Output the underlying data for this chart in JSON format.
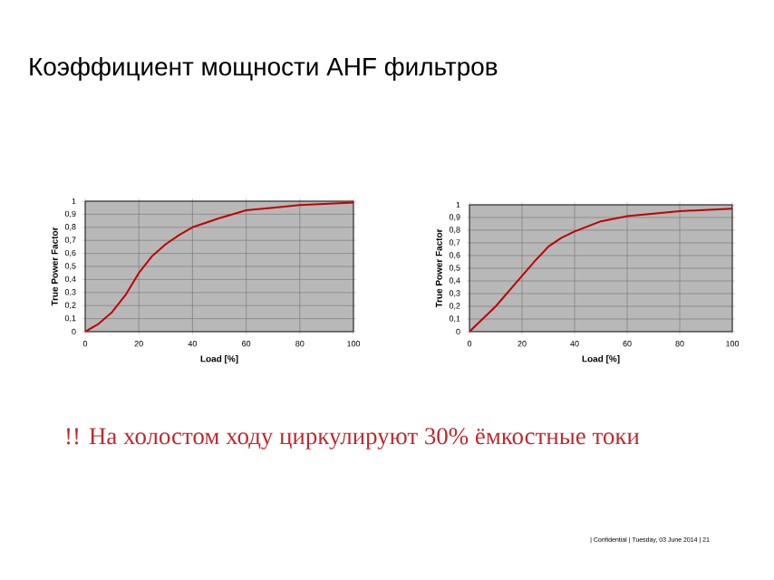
{
  "chart_data": [
    {
      "type": "line",
      "title": "Коэффициент мощности AHF фильтров",
      "annotations": [
        "!! На холостом ходу циркулируют 30% ёмкостные токи",
        "| Confidential | Tuesday, 03 June 2014 | 21"
      ],
      "xlabel": "Load [%]",
      "ylabel": "True Power Factor",
      "xlim": [
        0,
        100
      ],
      "ylim": [
        0,
        1
      ],
      "xticks": [
        0,
        20,
        40,
        60,
        80,
        100
      ],
      "yticks": [
        0,
        {
          "value": 0.1,
          "label": "0,1"
        },
        {
          "value": 0.2,
          "label": "0,2"
        },
        {
          "value": 0.3,
          "label": "0,3"
        },
        {
          "value": 0.4,
          "label": "0,4"
        },
        {
          "value": 0.5,
          "label": "0,5"
        },
        {
          "value": 0.6,
          "label": "0,6"
        },
        {
          "value": 0.7,
          "label": "0,7"
        },
        {
          "value": 0.8,
          "label": "0,8"
        },
        {
          "value": 0.9,
          "label": "0,9"
        },
        1
      ],
      "grid": true,
      "series": [
        {
          "color": "#c00000",
          "x": [
            0,
            5,
            10,
            15,
            20,
            25,
            30,
            35,
            40,
            50,
            60,
            70,
            80,
            90,
            100
          ],
          "values": [
            0,
            0.06,
            0.15,
            0.28,
            0.45,
            0.58,
            0.67,
            0.74,
            0.8,
            0.87,
            0.93,
            0.95,
            0.97,
            0.98,
            0.99
          ]
        }
      ]
    },
    {
      "type": "line",
      "xlabel": "Load [%]",
      "ylabel": "True Power Factor",
      "xlim": [
        0,
        100
      ],
      "ylim": [
        0,
        1
      ],
      "xticks": [
        0,
        20,
        40,
        60,
        80,
        100
      ],
      "yticks": [
        0,
        {
          "value": 0.1,
          "label": "0,1"
        },
        {
          "value": 0.2,
          "label": "0,2"
        },
        {
          "value": 0.3,
          "label": "0,3"
        },
        {
          "value": 0.4,
          "label": "0,4"
        },
        {
          "value": 0.5,
          "label": "0,5"
        },
        {
          "value": 0.6,
          "label": "0,6"
        },
        {
          "value": 0.7,
          "label": "0,7"
        },
        {
          "value": 0.8,
          "label": "0,8"
        },
        {
          "value": 0.9,
          "label": "0,9"
        },
        1
      ],
      "grid": true,
      "series": [
        {
          "color": "#c00000",
          "x": [
            0,
            5,
            10,
            15,
            20,
            25,
            30,
            35,
            40,
            50,
            60,
            70,
            80,
            90,
            100
          ],
          "values": [
            0,
            0.1,
            0.2,
            0.32,
            0.44,
            0.56,
            0.67,
            0.74,
            0.79,
            0.87,
            0.91,
            0.93,
            0.95,
            0.96,
            0.97
          ]
        }
      ]
    }
  ]
}
